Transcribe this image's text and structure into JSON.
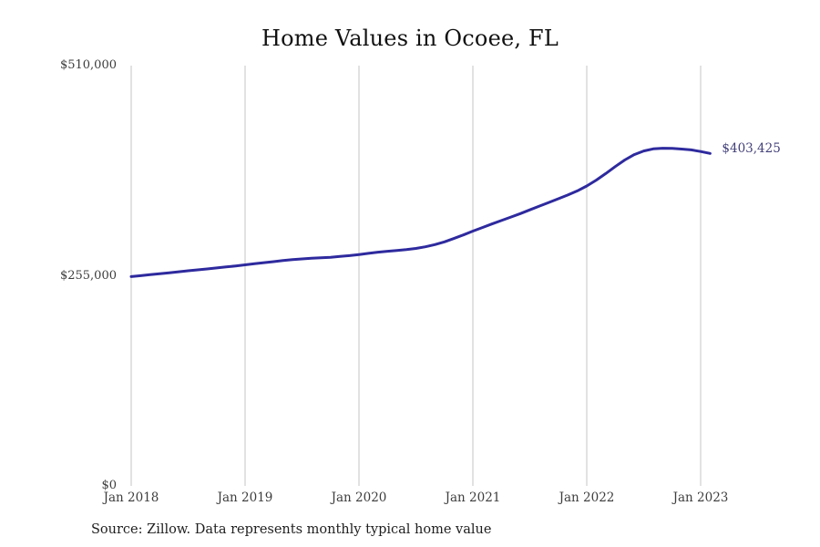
{
  "page": {
    "title": "Home Values in Ocoee, FL",
    "source_note": "Source: Zillow. Data represents monthly typical home value",
    "end_value_label": "$403,425"
  },
  "chart_data": {
    "type": "line",
    "title": "Home Values in Ocoee, FL",
    "series_name": "Monthly typical home value",
    "x_unit": "month",
    "months": [
      "2018-01",
      "2018-02",
      "2018-03",
      "2018-04",
      "2018-05",
      "2018-06",
      "2018-07",
      "2018-08",
      "2018-09",
      "2018-10",
      "2018-11",
      "2018-12",
      "2019-01",
      "2019-02",
      "2019-03",
      "2019-04",
      "2019-05",
      "2019-06",
      "2019-07",
      "2019-08",
      "2019-09",
      "2019-10",
      "2019-11",
      "2019-12",
      "2020-01",
      "2020-02",
      "2020-03",
      "2020-04",
      "2020-05",
      "2020-06",
      "2020-07",
      "2020-08",
      "2020-09",
      "2020-10",
      "2020-11",
      "2020-12",
      "2021-01",
      "2021-02",
      "2021-03",
      "2021-04",
      "2021-05",
      "2021-06",
      "2021-07",
      "2021-08",
      "2021-09",
      "2021-10",
      "2021-11",
      "2021-12",
      "2022-01",
      "2022-02",
      "2022-03",
      "2022-04",
      "2022-05",
      "2022-06",
      "2022-07",
      "2022-08",
      "2022-09",
      "2022-10",
      "2022-11",
      "2022-12",
      "2023-01",
      "2023-02"
    ],
    "values": [
      254000,
      255100,
      256300,
      257500,
      258700,
      259900,
      261100,
      262200,
      263300,
      264500,
      265700,
      267000,
      268300,
      269600,
      270900,
      272200,
      273500,
      274600,
      275500,
      276200,
      276800,
      277500,
      278400,
      279500,
      280800,
      282200,
      283600,
      284800,
      285800,
      286800,
      288200,
      290200,
      292800,
      296200,
      300200,
      304600,
      309200,
      313500,
      317800,
      322000,
      326200,
      330500,
      335000,
      339500,
      344000,
      348500,
      353000,
      358000,
      364000,
      371000,
      379000,
      387500,
      395500,
      402000,
      406500,
      409000,
      409800,
      409500,
      408800,
      407800,
      405800,
      403425
    ],
    "x_tick_labels": [
      "Jan 2018",
      "Jan 2019",
      "Jan 2020",
      "Jan 2021",
      "Jan 2022",
      "Jan 2023"
    ],
    "x_tick_month_indices": [
      0,
      12,
      24,
      36,
      48,
      60
    ],
    "y_tick_labels": [
      "$0",
      "$255,000",
      "$510,000"
    ],
    "y_tick_values": [
      0,
      255000,
      510000
    ],
    "ylim": [
      0,
      510000
    ],
    "grid": "vertical-only",
    "legend": "none",
    "annotation": {
      "text": "$403,425",
      "at_month": "2023-02",
      "value": 403425
    },
    "line_color": "#2e2a9e",
    "grid_color": "#c4c4c4",
    "source": "Source: Zillow. Data represents monthly typical home value"
  }
}
